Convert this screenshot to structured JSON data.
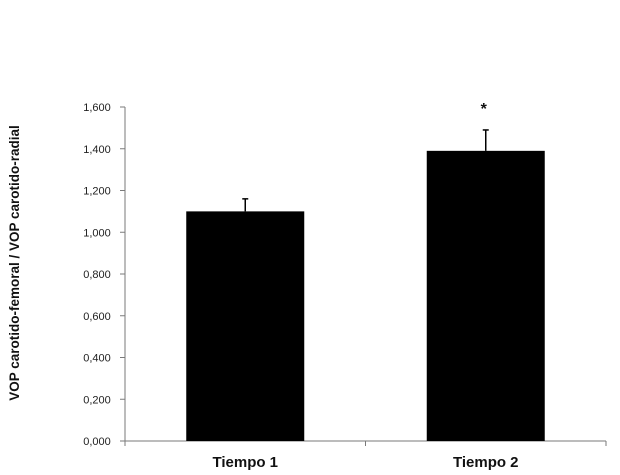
{
  "chart_data": {
    "type": "bar",
    "categories": [
      "Tiempo 1",
      "Tiempo 2"
    ],
    "values": [
      1.1,
      1.39
    ],
    "error": [
      0.06,
      0.1
    ],
    "annotations": [
      "",
      "*"
    ],
    "ylabel": "VOP carotido-femoral / VOP carotido-radial",
    "yticks": [
      "0,000",
      "0,200",
      "0,400",
      "0,600",
      "0,800",
      "1,000",
      "1,200",
      "1,400",
      "1,600"
    ],
    "ylim": [
      0,
      1.6
    ],
    "grid": false,
    "legend": "none",
    "bar_color": "#000000"
  }
}
